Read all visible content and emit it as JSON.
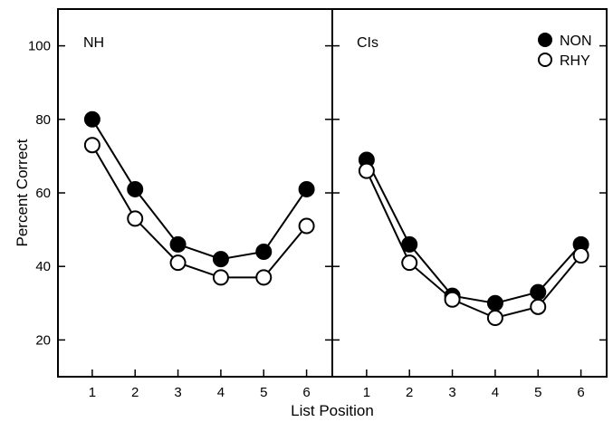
{
  "chart_data": {
    "type": "line",
    "xlabel": "List Position",
    "ylabel": "Percent Correct",
    "x": [
      1,
      2,
      3,
      4,
      5,
      6
    ],
    "xlim": [
      0.2,
      6.6
    ],
    "ylim": [
      10,
      110
    ],
    "yticks": [
      20,
      40,
      60,
      80,
      100
    ],
    "grid": false,
    "legend": {
      "placement": "top-right",
      "panel": 1
    },
    "series_styles": [
      {
        "name": "NON",
        "marker": "filled-circle",
        "color": "#000000"
      },
      {
        "name": "RHY",
        "marker": "open-circle",
        "color": "#000000"
      }
    ],
    "panels": [
      {
        "label": "NH",
        "series": [
          {
            "name": "NON",
            "values": [
              80,
              61,
              46,
              42,
              44,
              61
            ]
          },
          {
            "name": "RHY",
            "values": [
              73,
              53,
              41,
              37,
              37,
              51
            ]
          }
        ]
      },
      {
        "label": "CIs",
        "series": [
          {
            "name": "NON",
            "values": [
              69,
              46,
              32,
              30,
              33,
              46
            ]
          },
          {
            "name": "RHY",
            "values": [
              66,
              41,
              31,
              26,
              29,
              43
            ]
          }
        ]
      }
    ]
  }
}
